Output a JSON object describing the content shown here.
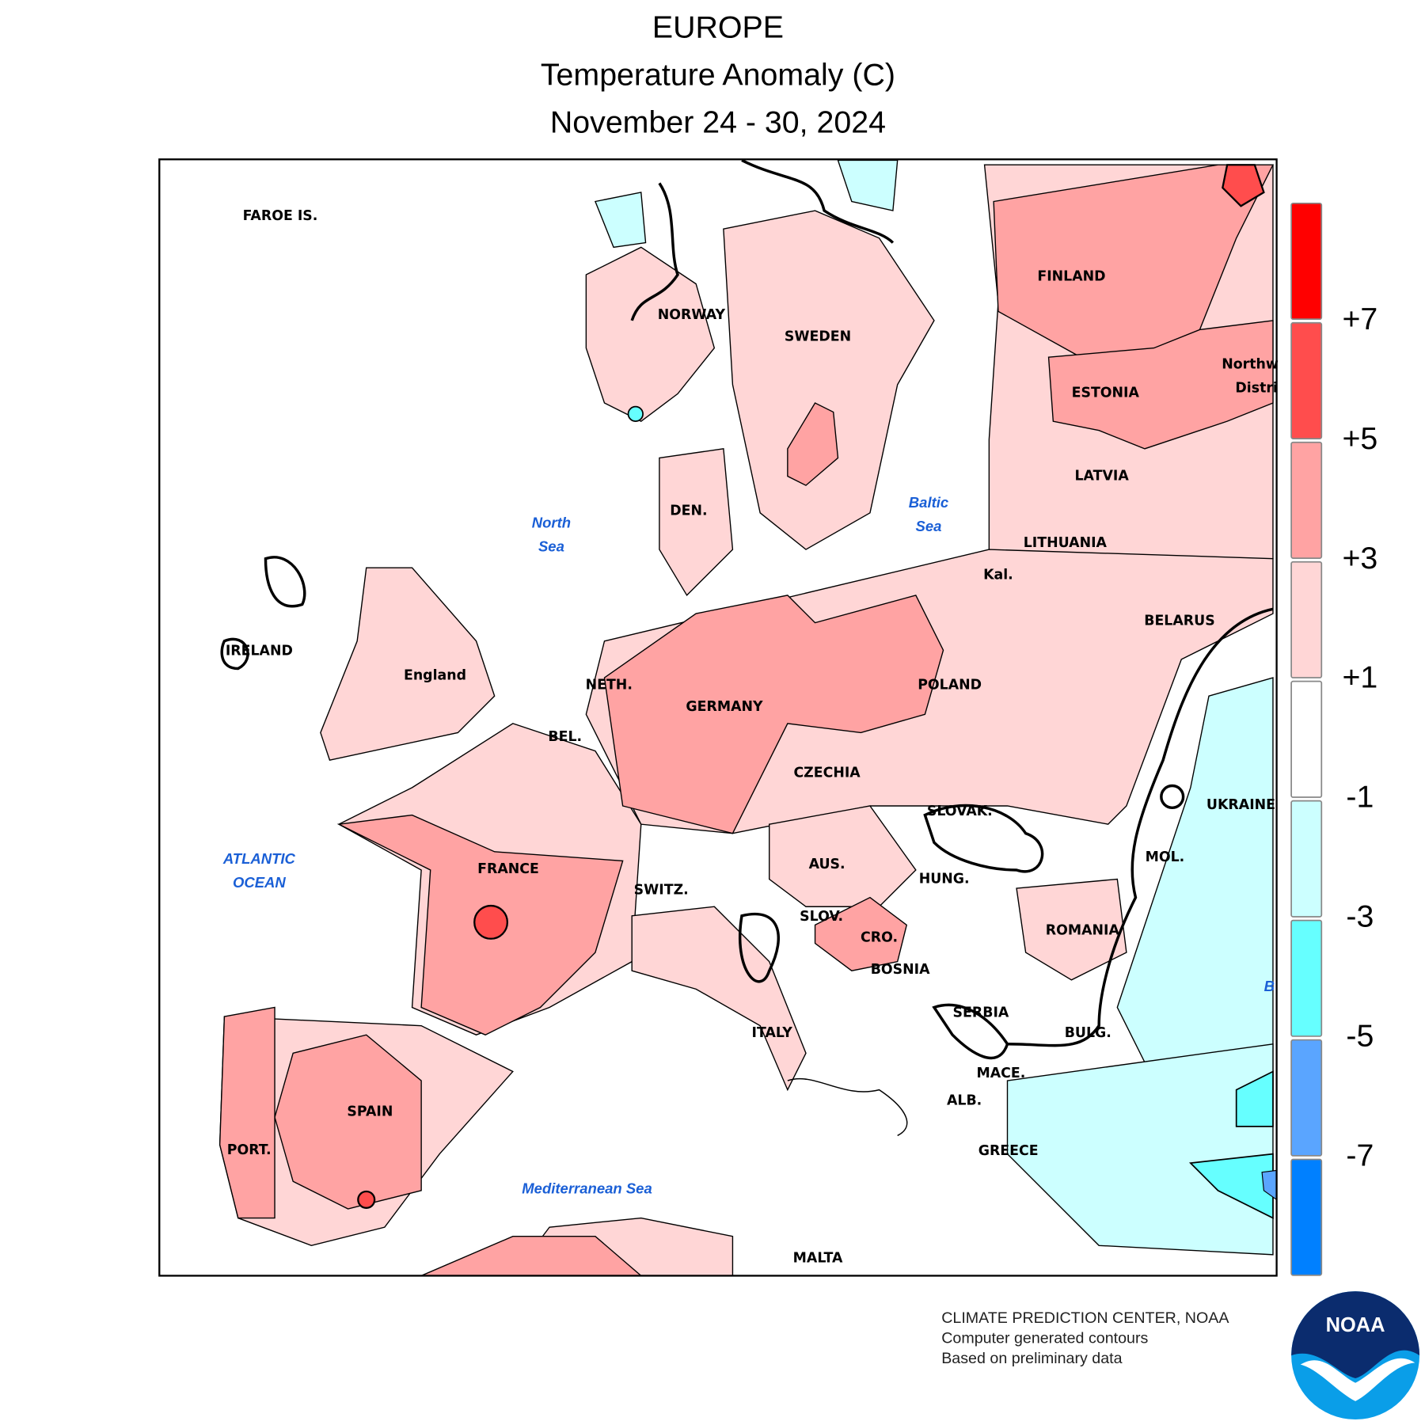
{
  "header": {
    "region": "EUROPE",
    "title": "Temperature Anomaly (C)",
    "period": "November 24 - 30, 2024"
  },
  "map": {
    "country_labels": [
      "FAROE IS.",
      "NORWAY",
      "SWEDEN",
      "FINLAND",
      "ESTONIA",
      "Northw",
      "Distri",
      "LATVIA",
      "LITHUANIA",
      "Kal.",
      "BELARUS",
      "DEN.",
      "England",
      "IRELAND",
      "NETH.",
      "GERMANY",
      "POLAND",
      "BEL.",
      "CZECHIA",
      "SLOVAK.",
      "UKRAINE",
      "FRANCE",
      "SWITZ.",
      "AUS.",
      "HUNG.",
      "MOL.",
      "SLOV.",
      "CRO.",
      "ROMANIA",
      "BOSNIA",
      "SERBIA",
      "ITALY",
      "BULG.",
      "MACE.",
      "ALB.",
      "SPAIN",
      "GREECE",
      "PORT.",
      "MALTA"
    ],
    "sea_labels": [
      [
        "North",
        "Sea"
      ],
      [
        "Baltic",
        "Sea"
      ],
      [
        "ATLANTIC",
        "OCEAN"
      ],
      [
        "Mediterranean Sea"
      ],
      [
        "B"
      ]
    ]
  },
  "legend": {
    "colors": [
      "#ff0000",
      "#ff4d4d",
      "#ffa3a3",
      "#ffd6d6",
      "#ffffff",
      "#ccffff",
      "#66ffff",
      "#5aa5ff",
      "#0080ff"
    ],
    "labels": [
      "+7",
      "+5",
      "+3",
      "+1",
      "-1",
      "-3",
      "-5",
      "-7"
    ]
  },
  "footer": {
    "lines": [
      "CLIMATE PREDICTION CENTER, NOAA",
      "Computer generated contours",
      "Based on preliminary data"
    ]
  },
  "logo": {
    "text": "NOAA"
  }
}
